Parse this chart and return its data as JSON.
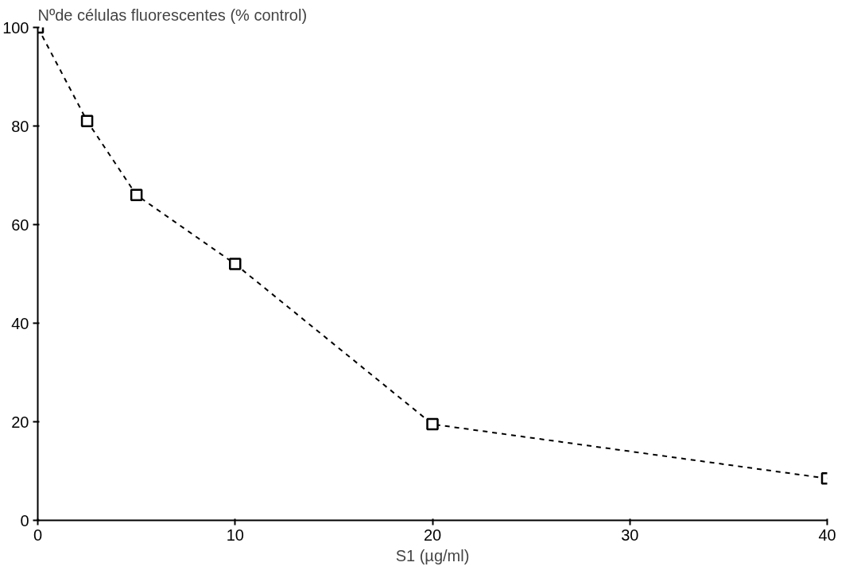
{
  "chart_data": {
    "type": "line",
    "ylabel": "Nºde células fluorescentes (% control)",
    "xlabel": "S1 (µg/ml)",
    "x": [
      0,
      2.5,
      5,
      10,
      20,
      40
    ],
    "series": [
      {
        "color": "#000000",
        "values": [
          100,
          81,
          66,
          52,
          19.5,
          8.5
        ]
      }
    ],
    "xlim": [
      0,
      40
    ],
    "ylim": [
      0,
      100
    ],
    "xticks": [
      0,
      10,
      20,
      30,
      40
    ],
    "yticks": [
      0,
      20,
      40,
      60,
      80,
      100
    ],
    "grid": false,
    "marker": "square",
    "line_style": "dashed"
  }
}
